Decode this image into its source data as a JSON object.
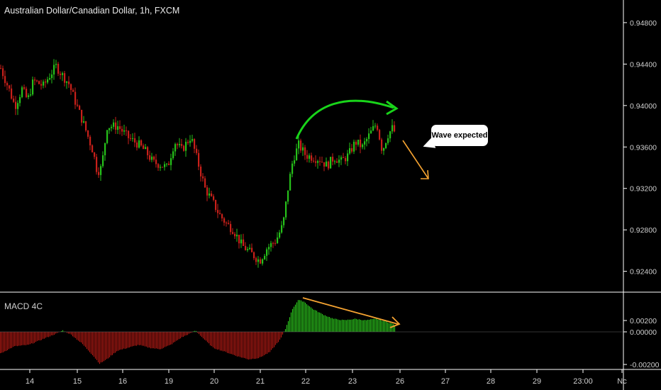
{
  "title": "Australian Dollar/Canadian Dollar, 1h, FXCM",
  "indicator_label": "MACD 4C",
  "annotation": "Wave expected",
  "colors": {
    "up": "#26c11a",
    "down": "#c8201a",
    "hist_pos": "#2cc51d",
    "hist_neg": "#b11a14",
    "arc": "#19d41a",
    "arrow": "#f5a331",
    "axis": "#ffffff"
  },
  "chart_data": [
    {
      "type": "candlestick",
      "title": "Australian Dollar/Canadian Dollar, 1h, FXCM",
      "ylim": [
        0.9224,
        0.9495
      ],
      "yticks": [
        "0.94800",
        "0.94400",
        "0.94000",
        "0.93600",
        "0.93200",
        "0.92800",
        "0.92400"
      ],
      "xticks": [
        "14",
        "15",
        "16",
        "19",
        "20",
        "21",
        "22",
        "23",
        "26",
        "27",
        "28",
        "29",
        "23:00",
        "Nc"
      ],
      "close_anchors": [
        [
          0,
          0.9436
        ],
        [
          12,
          0.9415
        ],
        [
          20,
          0.9399
        ],
        [
          30,
          0.9416
        ],
        [
          38,
          0.9405
        ],
        [
          46,
          0.9424
        ],
        [
          60,
          0.9419
        ],
        [
          70,
          0.943
        ],
        [
          78,
          0.9438
        ],
        [
          86,
          0.943
        ],
        [
          96,
          0.9421
        ],
        [
          106,
          0.9402
        ],
        [
          118,
          0.938
        ],
        [
          130,
          0.9356
        ],
        [
          136,
          0.9336
        ],
        [
          142,
          0.934
        ],
        [
          150,
          0.938
        ],
        [
          165,
          0.938
        ],
        [
          180,
          0.9369
        ],
        [
          195,
          0.9362
        ],
        [
          205,
          0.9355
        ],
        [
          215,
          0.9345
        ],
        [
          225,
          0.9343
        ],
        [
          235,
          0.934
        ],
        [
          245,
          0.9365
        ],
        [
          255,
          0.9357
        ],
        [
          268,
          0.937
        ],
        [
          278,
          0.9345
        ],
        [
          288,
          0.932
        ],
        [
          298,
          0.9308
        ],
        [
          308,
          0.9295
        ],
        [
          318,
          0.9286
        ],
        [
          328,
          0.928
        ],
        [
          340,
          0.9265
        ],
        [
          352,
          0.9258
        ],
        [
          365,
          0.925
        ],
        [
          375,
          0.9262
        ],
        [
          388,
          0.927
        ],
        [
          398,
          0.9285
        ],
        [
          405,
          0.932
        ],
        [
          412,
          0.9348
        ],
        [
          420,
          0.9362
        ],
        [
          430,
          0.9352
        ],
        [
          440,
          0.935
        ],
        [
          450,
          0.9348
        ],
        [
          460,
          0.9342
        ],
        [
          470,
          0.935
        ],
        [
          480,
          0.9346
        ],
        [
          490,
          0.9352
        ],
        [
          500,
          0.9365
        ],
        [
          510,
          0.936
        ],
        [
          520,
          0.9372
        ],
        [
          530,
          0.9383
        ],
        [
          538,
          0.9356
        ],
        [
          545,
          0.9371
        ],
        [
          552,
          0.9378
        ],
        [
          556,
          0.9374
        ]
      ]
    },
    {
      "type": "histogram",
      "title": "MACD 4C",
      "ylim": [
        -0.0025,
        0.0025
      ],
      "yticks": [
        "0.00200",
        "0.00000",
        "-0.00200"
      ],
      "hist_anchors": [
        [
          0,
          -0.0015
        ],
        [
          20,
          -0.001
        ],
        [
          40,
          -0.0009
        ],
        [
          60,
          -0.0005
        ],
        [
          80,
          -0.0001
        ],
        [
          88,
          0.0001
        ],
        [
          100,
          -0.0002
        ],
        [
          115,
          -0.0008
        ],
        [
          130,
          -0.0016
        ],
        [
          140,
          -0.0022
        ],
        [
          150,
          -0.0019
        ],
        [
          165,
          -0.0013
        ],
        [
          180,
          -0.0011
        ],
        [
          195,
          -0.0009
        ],
        [
          210,
          -0.0011
        ],
        [
          225,
          -0.0012
        ],
        [
          240,
          -0.0009
        ],
        [
          255,
          -0.0004
        ],
        [
          268,
          -0.0001
        ],
        [
          275,
          0.0001
        ],
        [
          285,
          -0.0004
        ],
        [
          300,
          -0.0011
        ],
        [
          318,
          -0.0014
        ],
        [
          335,
          -0.0017
        ],
        [
          350,
          -0.0019
        ],
        [
          365,
          -0.0018
        ],
        [
          380,
          -0.0014
        ],
        [
          395,
          -0.0005
        ],
        [
          402,
          0.0002
        ],
        [
          412,
          0.0016
        ],
        [
          420,
          0.0022
        ],
        [
          428,
          0.0021
        ],
        [
          440,
          0.0016
        ],
        [
          455,
          0.0012
        ],
        [
          470,
          0.0009
        ],
        [
          485,
          0.0008
        ],
        [
          500,
          0.0009
        ],
        [
          515,
          0.0008
        ],
        [
          530,
          0.0009
        ],
        [
          545,
          0.0007
        ],
        [
          556,
          0.0005
        ]
      ]
    }
  ]
}
